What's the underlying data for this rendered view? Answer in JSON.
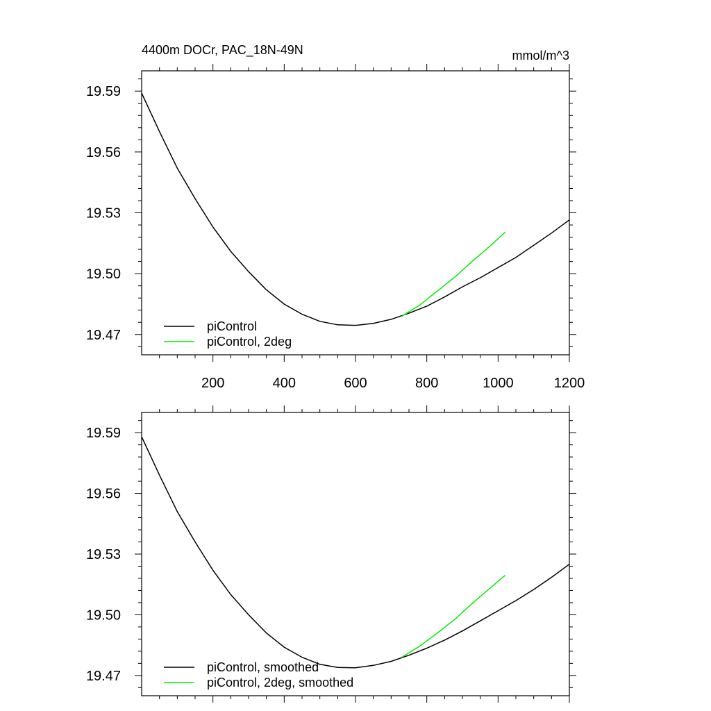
{
  "chart_data": [
    {
      "type": "line",
      "title": "4400m DOCr, PAC_18N-49N",
      "units": "mmol/m^3",
      "xlim": [
        0,
        1200
      ],
      "ylim": [
        19.46,
        19.6
      ],
      "xticks": [
        200,
        400,
        600,
        800,
        1000,
        1200
      ],
      "xtick_labels": [
        "200",
        "400",
        "600",
        "800",
        "1000",
        "1200"
      ],
      "yticks": [
        19.47,
        19.5,
        19.53,
        19.56,
        19.59
      ],
      "ytick_labels": [
        "19.47",
        "19.50",
        "19.53",
        "19.56",
        "19.59"
      ],
      "legend_position": "bottom-left",
      "series": [
        {
          "name": "piControl",
          "color": "#000000",
          "x": [
            0,
            50,
            100,
            150,
            200,
            250,
            300,
            350,
            400,
            450,
            500,
            550,
            600,
            650,
            700,
            750,
            800,
            850,
            900,
            950,
            1000,
            1050,
            1100,
            1150,
            1200
          ],
          "y": [
            19.589,
            19.57,
            19.552,
            19.537,
            19.523,
            19.511,
            19.501,
            19.492,
            19.485,
            19.48,
            19.4765,
            19.4748,
            19.4745,
            19.4755,
            19.4775,
            19.4805,
            19.484,
            19.4885,
            19.4935,
            19.498,
            19.503,
            19.508,
            19.514,
            19.52,
            19.5265
          ]
        },
        {
          "name": "piControl, 2deg",
          "color": "#00ee00",
          "x": [
            730,
            780,
            830,
            880,
            930,
            980,
            1020
          ],
          "y": [
            19.479,
            19.4845,
            19.4915,
            19.4985,
            19.5065,
            19.514,
            19.5205
          ]
        }
      ]
    },
    {
      "type": "line",
      "title": "",
      "units": "",
      "xlim": [
        0,
        1200
      ],
      "ylim": [
        19.46,
        19.6
      ],
      "xticks": [
        200,
        400,
        600,
        800,
        1000,
        1200
      ],
      "xtick_labels": [],
      "yticks": [
        19.47,
        19.5,
        19.53,
        19.56,
        19.59
      ],
      "ytick_labels": [
        "19.47",
        "19.50",
        "19.53",
        "19.56",
        "19.59"
      ],
      "legend_position": "bottom-left",
      "series": [
        {
          "name": "piControl, smoothed",
          "color": "#000000",
          "x": [
            0,
            50,
            100,
            150,
            200,
            250,
            300,
            350,
            400,
            450,
            500,
            550,
            600,
            650,
            700,
            750,
            800,
            850,
            900,
            950,
            1000,
            1050,
            1100,
            1150,
            1200
          ],
          "y": [
            19.588,
            19.569,
            19.551,
            19.536,
            19.522,
            19.51,
            19.5,
            19.491,
            19.484,
            19.479,
            19.4755,
            19.474,
            19.4738,
            19.475,
            19.477,
            19.48,
            19.4835,
            19.4875,
            19.492,
            19.497,
            19.502,
            19.507,
            19.5125,
            19.5185,
            19.525
          ]
        },
        {
          "name": "piControl, 2deg, smoothed",
          "color": "#00ee00",
          "x": [
            730,
            780,
            830,
            880,
            930,
            980,
            1020
          ],
          "y": [
            19.479,
            19.4845,
            19.491,
            19.498,
            19.506,
            19.5135,
            19.5195
          ]
        }
      ]
    }
  ]
}
